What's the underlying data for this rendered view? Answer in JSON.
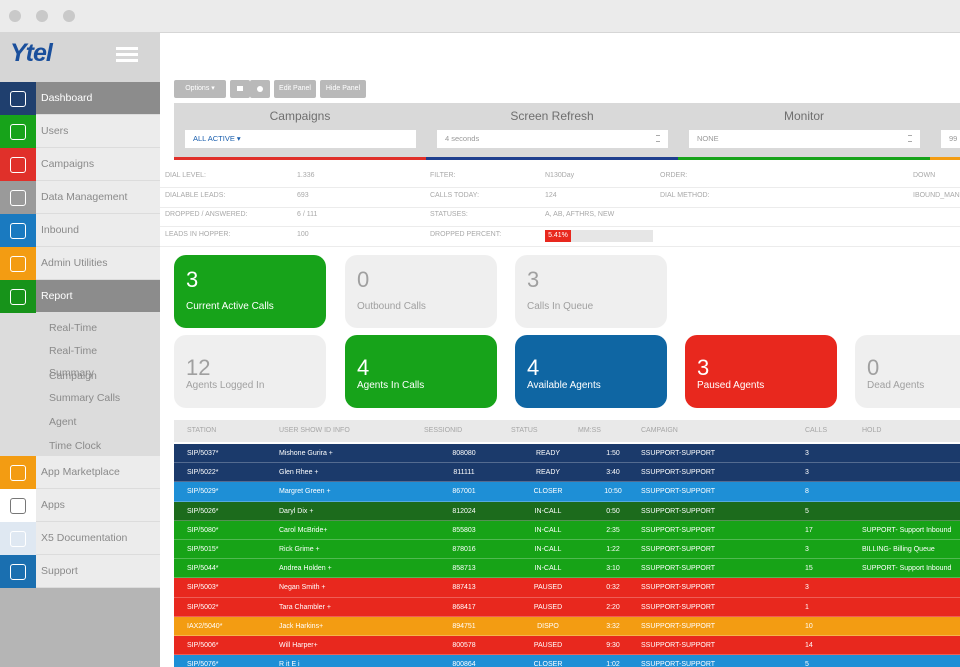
{
  "sidebar": {
    "logo": "Ytel",
    "menu": [
      {
        "label": "Dashboard",
        "color": "#1f3f6e",
        "active": true
      },
      {
        "label": "Users",
        "color": "#17a31a"
      },
      {
        "label": "Campaigns",
        "color": "#e0302a"
      },
      {
        "label": "Data Management",
        "color": "#9a9a9a"
      },
      {
        "label": "Inbound",
        "color": "#1a7ac0"
      },
      {
        "label": "Admin Utilities",
        "color": "#f39c12"
      },
      {
        "label": "Report",
        "color": "#17931a",
        "active": true
      }
    ],
    "submenu": [
      "Real-Time",
      "Real-Time Summary",
      "Campaign Summary Calls",
      "Agent",
      "Time Clock"
    ],
    "apps": [
      {
        "label": "App Marketplace",
        "color": "#f39c12"
      },
      {
        "label": "Apps",
        "color": "#ffffff"
      },
      {
        "label": "X5 Documentation",
        "color": "#dfe8f2"
      },
      {
        "label": "Support",
        "color": "#1a6fb0"
      }
    ]
  },
  "toolbar": {
    "buttons": [
      "Options ▾",
      "Edit Panel",
      "Hide Panel"
    ]
  },
  "panel": {
    "columns": [
      {
        "title": "Campaigns",
        "select": "ALL ACTIVE ▾",
        "color": "#e0302a"
      },
      {
        "title": "Screen Refresh",
        "select": "4 seconds",
        "color": "#1f3f8e"
      },
      {
        "title": "Monitor",
        "select": "NONE",
        "color": "#17a31a"
      },
      {
        "select": "99",
        "color": "#f39c12"
      }
    ]
  },
  "info": {
    "rows": [
      [
        "DIAL LEVEL:",
        "1.336",
        "FILTER:",
        "N130Day",
        "ORDER:",
        "DOWN"
      ],
      [
        "DIALABLE LEADS:",
        "693",
        "CALLS TODAY:",
        "124",
        "DIAL METHOD:",
        "IBOUND_MAN"
      ],
      [
        "DROPPED / ANSWERED:",
        "6 / 111",
        "STATUSES:",
        "A, AB, AFTHRS, NEW"
      ],
      [
        "LEADS IN HOPPER:",
        "100",
        "DROPPED PERCENT:",
        "5.41%"
      ]
    ]
  },
  "cards": [
    [
      {
        "value": "3",
        "label": "Current Active Calls",
        "color": "#17a31a"
      },
      {
        "value": "0",
        "label": "Outbound Calls",
        "color": "#efefef"
      },
      {
        "value": "3",
        "label": "Calls In Queue",
        "color": "#efefef"
      }
    ],
    [
      {
        "value": "12",
        "label": "Agents Logged In",
        "color": "#efefef"
      },
      {
        "value": "4",
        "label": "Agents In Calls",
        "color": "#17a31a"
      },
      {
        "value": "4",
        "label": "Available Agents",
        "color": "#0f66a3"
      },
      {
        "value": "3",
        "label": "Paused Agents",
        "color": "#e8281e"
      },
      {
        "value": "0",
        "label": "Dead Agents",
        "color": "#efefef"
      }
    ]
  ],
  "table": {
    "columns": [
      "STATION",
      "USER SHOW ID INFO",
      "SESSIONID",
      "STATUS",
      "MM:SS",
      "CAMPAIGN",
      "CALLS",
      "HOLD"
    ],
    "rows": [
      {
        "color": "#1b3a6b",
        "cells": [
          "SIP/5037*",
          "Mishone Gurira +",
          "808080",
          "READY",
          "1:50",
          "SSUPPORT-SUPPORT",
          "3"
        ]
      },
      {
        "color": "#1b3a6b",
        "cells": [
          "SIP/5022*",
          "Glen Rhee +",
          "811111",
          "READY",
          "3:40",
          "SSUPPORT-SUPPORT",
          "3"
        ]
      },
      {
        "color": "#1e8fd6",
        "cells": [
          "SIP/5029*",
          "Margret Green +",
          "867001",
          "CLOSER",
          "10:50",
          "SSUPPORT-SUPPORT",
          "8"
        ]
      },
      {
        "color": "#1c6b1c",
        "cells": [
          "SIP/5026*",
          "Daryl Dix +",
          "812024",
          "IN-CALL",
          "0:50",
          "SSUPPORT-SUPPORT",
          "5"
        ]
      },
      {
        "color": "#17a317",
        "cells": [
          "SIP/5080*",
          "Carol McBride+",
          "855803",
          "IN-CALL",
          "2:35",
          "SSUPPORT-SUPPORT",
          "17",
          "SUPPORT- Support Inbound"
        ]
      },
      {
        "color": "#17a317",
        "cells": [
          "SIP/5015*",
          "Rick Grime +",
          "878016",
          "IN-CALL",
          "1:22",
          "SSUPPORT-SUPPORT",
          "3",
          "BILLING- Billing Queue"
        ]
      },
      {
        "color": "#17a317",
        "cells": [
          "SIP/5044*",
          "Andrea Holden +",
          "858713",
          "IN-CALL",
          "3:10",
          "SSUPPORT-SUPPORT",
          "15",
          "SUPPORT- Support Inbound"
        ]
      },
      {
        "color": "#e8281e",
        "cells": [
          "SIP/5003*",
          "Negan Smith +",
          "887413",
          "PAUSED",
          "0:32",
          "SSUPPORT-SUPPORT",
          "3"
        ]
      },
      {
        "color": "#e8281e",
        "cells": [
          "SIP/5002*",
          "Tara Chambler +",
          "868417",
          "PAUSED",
          "2:20",
          "SSUPPORT-SUPPORT",
          "1"
        ]
      },
      {
        "color": "#f39c12",
        "cells": [
          "IAX2/5040*",
          "Jack Harkins+",
          "894751",
          "DISPO",
          "3:32",
          "SSUPPORT-SUPPORT",
          "10"
        ]
      },
      {
        "color": "#e8281e",
        "cells": [
          "SIP/5006*",
          "Will Harper+",
          "800578",
          "PAUSED",
          "9:30",
          "SSUPPORT-SUPPORT",
          "14"
        ]
      },
      {
        "color": "#1e8fd6",
        "cells": [
          "SIP/5076*",
          "R it E i",
          "800864",
          "CLOSER",
          "1:02",
          "SSUPPORT-SUPPORT",
          "5"
        ]
      }
    ]
  }
}
